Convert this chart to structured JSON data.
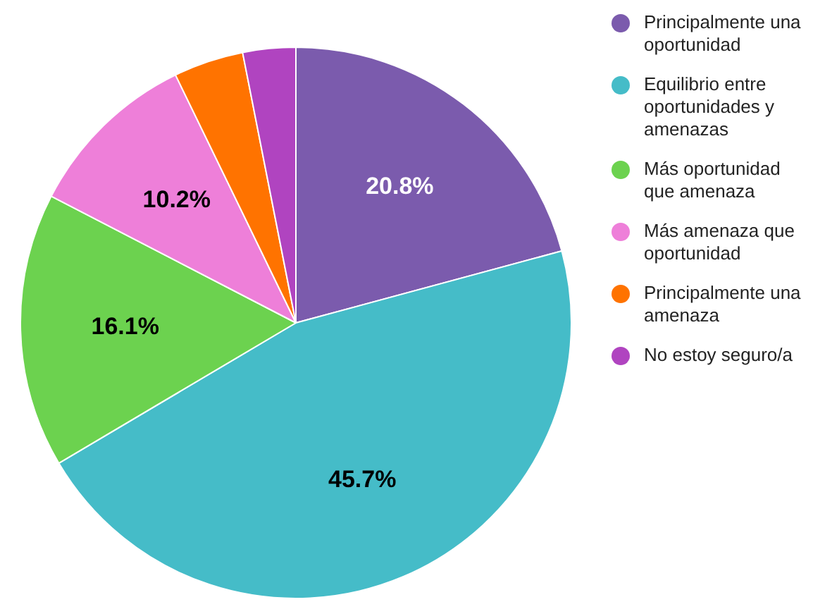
{
  "chart_data": {
    "type": "pie",
    "categories": [
      "Principalmente una oportunidad",
      "Equilibrio entre oportunidades y amenazas",
      "Más oportunidad que amenaza",
      "Más amenaza que oportunidad",
      "Principalmente una amenaza",
      "No estoy seguro/a"
    ],
    "values": [
      20.8,
      45.7,
      16.1,
      10.2,
      4.1,
      3.1
    ],
    "value_labels": [
      "20.8%",
      "45.7%",
      "16.1%",
      "10.2%",
      null,
      null
    ],
    "colors": [
      "#7b5bad",
      "#45bcc8",
      "#6cd24f",
      "#ee7fd9",
      "#ff7300",
      "#b044c0"
    ],
    "legend": "right"
  }
}
